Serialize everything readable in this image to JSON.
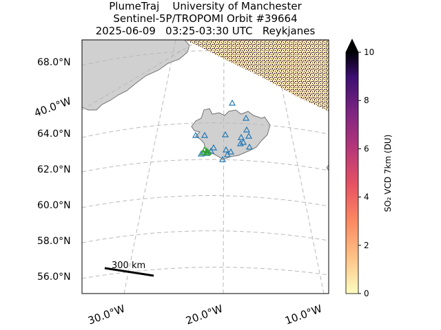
{
  "title": {
    "line1": "PlumeTraj    University of Manchester",
    "line2": "Sentinel-5P/TROPOMI Orbit #39664",
    "line3": "2025-06-09   03:25-03:30 UTC   Reykjanes"
  },
  "lat_labels": [
    "68.0°N",
    "64.0°N",
    "62.0°N",
    "60.0°N",
    "58.0°N",
    "56.0°N"
  ],
  "lon_labels": {
    "left_side": "40.0°W",
    "bottom": [
      "30.0°W",
      "20.0°W",
      "10.0°W"
    ]
  },
  "scale_bar": {
    "label": "300 km"
  },
  "colorbar": {
    "label": "SO₂ VCD 7km (DU)",
    "min": 0,
    "max": 10,
    "ticks": [
      "0",
      "2",
      "4",
      "6",
      "8",
      "10"
    ],
    "colormap": "magma_r",
    "extend": "max"
  },
  "colors": {
    "land": "#d0d0d0",
    "coast": "#707070",
    "grid": "#b8b8b8",
    "volcano_marker": "#1f77b4",
    "active_vent_marker": "#2ca02c"
  }
}
